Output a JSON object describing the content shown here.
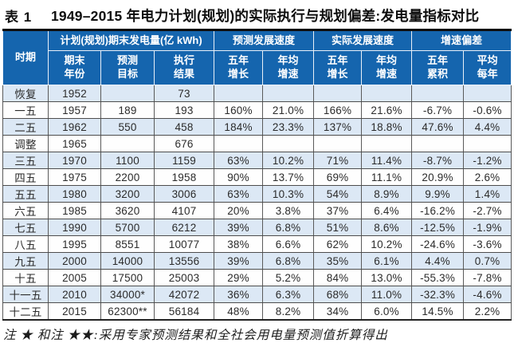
{
  "page": {
    "caption_label": "表 1",
    "title": "1949–2015 年电力计划(规划)的实际执行与规划偏差:发电量指标对比",
    "footnote": "注 ★ 和注 ★★:采用专家预测结果和全社会用电量预测值折算得出"
  },
  "colors": {
    "header_bg": "#1565ae",
    "row_alt_bg": "#dce8f5",
    "grid": "#4d4d4d"
  },
  "chart_data": {
    "type": "table",
    "title": "1949–2015 年电力计划(规划)的实际执行与规划偏差:发电量指标对比",
    "header": {
      "period": "时期",
      "groups": [
        {
          "label": "计划(规划)期末发电量(亿 kWh)",
          "span": 3
        },
        {
          "label": "预测发展速度",
          "span": 2
        },
        {
          "label": "实际发展速度",
          "span": 2
        },
        {
          "label": "增速偏差",
          "span": 2
        }
      ],
      "subheaders": [
        "期末\n年份",
        "预测\n目标",
        "执行\n结果",
        "五年\n增长",
        "年均\n增速",
        "五年\n增长",
        "年均\n增速",
        "五年\n累积",
        "平均\n每年"
      ]
    },
    "rows": [
      [
        "恢复",
        "1952",
        "",
        "73",
        "",
        "",
        "",
        "",
        "",
        ""
      ],
      [
        "一五",
        "1957",
        "189",
        "193",
        "160%",
        "21.0%",
        "166%",
        "21.6%",
        "-6.7%",
        "-0.6%"
      ],
      [
        "二五",
        "1962",
        "550",
        "458",
        "184%",
        "23.3%",
        "137%",
        "18.8%",
        "47.6%",
        "4.4%"
      ],
      [
        "调整",
        "1965",
        "",
        "676",
        "",
        "",
        "",
        "",
        "",
        ""
      ],
      [
        "三五",
        "1970",
        "1100",
        "1159",
        "63%",
        "10.2%",
        "71%",
        "11.4%",
        "-8.7%",
        "-1.2%"
      ],
      [
        "四五",
        "1975",
        "2200",
        "1958",
        "90%",
        "13.7%",
        "69%",
        "11.1%",
        "20.9%",
        "2.6%"
      ],
      [
        "五五",
        "1980",
        "3200",
        "3006",
        "63%",
        "10.3%",
        "54%",
        "8.9%",
        "9.9%",
        "1.4%"
      ],
      [
        "六五",
        "1985",
        "3620",
        "4107",
        "20%",
        "3.8%",
        "37%",
        "6.4%",
        "-16.2%",
        "-2.7%"
      ],
      [
        "七五",
        "1990",
        "5700",
        "6212",
        "39%",
        "6.8%",
        "51%",
        "8.6%",
        "-12.5%",
        "-1.9%"
      ],
      [
        "八五",
        "1995",
        "8551",
        "10077",
        "38%",
        "6.6%",
        "62%",
        "10.2%",
        "-24.6%",
        "-3.6%"
      ],
      [
        "九五",
        "2000",
        "14000",
        "13556",
        "39%",
        "6.8%",
        "35%",
        "6.1%",
        "4.4%",
        "0.7%"
      ],
      [
        "十五",
        "2005",
        "17500",
        "25003",
        "29%",
        "5.2%",
        "84%",
        "13.0%",
        "-55.3%",
        "-7.8%"
      ],
      [
        "十一五",
        "2010",
        "34000*",
        "42072",
        "36%",
        "6.3%",
        "68%",
        "11.0%",
        "-32.3%",
        "-4.6%"
      ],
      [
        "十二五",
        "2015",
        "62300**",
        "56184",
        "48%",
        "8.2%",
        "34%",
        "6.0%",
        "14.5%",
        "2.2%"
      ]
    ]
  }
}
